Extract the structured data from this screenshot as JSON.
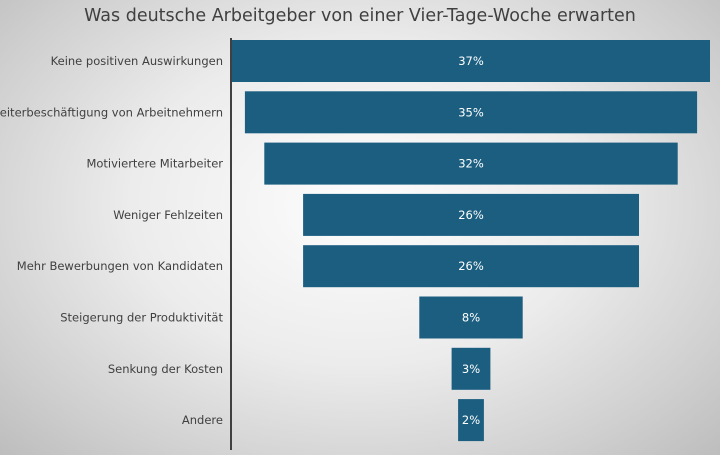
{
  "chart_data": {
    "type": "bar",
    "orientation": "horizontal-funnel",
    "title": "Was deutsche Arbeitgeber von einer Vier-Tage-Woche erwarten",
    "categories": [
      "Keine positiven Auswirkungen",
      "Weiterbeschäftigung von Arbeitnehmern",
      "Motiviertere Mitarbeiter",
      "Weniger Fehlzeiten",
      "Mehr Bewerbungen von Kandidaten",
      "Steigerung der Produktivität",
      "Senkung der Kosten",
      "Andere"
    ],
    "values": [
      37,
      35,
      32,
      26,
      26,
      8,
      3,
      2
    ],
    "value_labels": [
      "37%",
      "35%",
      "32%",
      "26%",
      "26%",
      "8%",
      "3%",
      "2%"
    ],
    "value_unit": "%",
    "bar_color": "#1b5e80",
    "label_color": "#ffffff",
    "grid": false,
    "legend": "none"
  }
}
